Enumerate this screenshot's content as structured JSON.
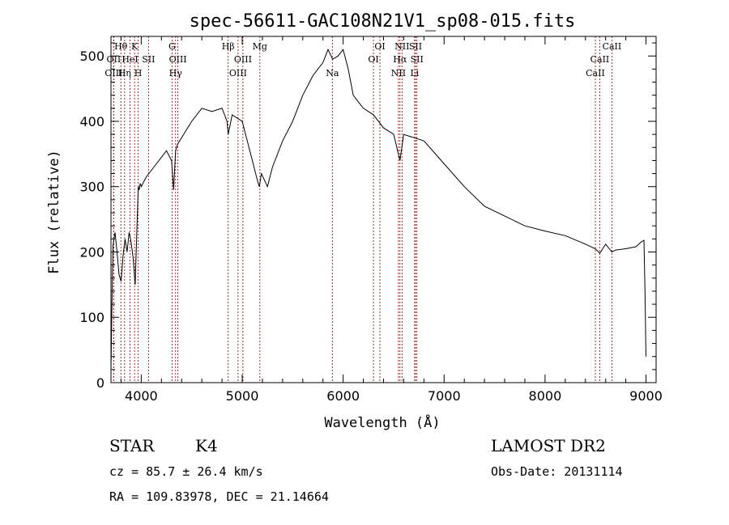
{
  "chart_data": {
    "type": "line",
    "title": "spec-56611-GAC108N21V1_sp08-015.fits",
    "xlabel": "Wavelength (Å)",
    "ylabel": "Flux (relative)",
    "xlim": [
      3700,
      9100
    ],
    "ylim": [
      0,
      530
    ],
    "xticks": [
      4000,
      5000,
      6000,
      7000,
      8000,
      9000
    ],
    "yticks": [
      0,
      100,
      200,
      300,
      400,
      500
    ],
    "grid": false,
    "series": [
      {
        "x": [
          3700,
          3710,
          3720,
          3740,
          3760,
          3780,
          3800,
          3820,
          3840,
          3860,
          3880,
          3900,
          3920,
          3940,
          3960,
          3970,
          3980,
          3990,
          4000,
          4050,
          4100,
          4150,
          4200,
          4250,
          4300,
          4320,
          4340,
          4360,
          4400,
          4500,
          4600,
          4700,
          4800,
          4850,
          4861,
          4900,
          5000,
          5050,
          5100,
          5150,
          5170,
          5190,
          5250,
          5300,
          5400,
          5500,
          5600,
          5700,
          5800,
          5850,
          5895,
          5950,
          6000,
          6050,
          6100,
          6150,
          6200,
          6300,
          6400,
          6500,
          6563,
          6600,
          6700,
          6800,
          7000,
          7200,
          7400,
          7600,
          7800,
          8000,
          8200,
          8400,
          8498,
          8542,
          8600,
          8662,
          8700,
          8800,
          8900,
          8950,
          8980,
          8990,
          9000
        ],
        "y": [
          20,
          120,
          210,
          230,
          200,
          165,
          155,
          195,
          220,
          200,
          230,
          215,
          190,
          150,
          250,
          300,
          295,
          305,
          300,
          315,
          325,
          335,
          345,
          355,
          340,
          295,
          355,
          365,
          375,
          400,
          420,
          415,
          420,
          400,
          380,
          410,
          400,
          370,
          340,
          310,
          300,
          320,
          300,
          330,
          370,
          400,
          440,
          470,
          490,
          510,
          495,
          500,
          510,
          480,
          440,
          430,
          420,
          410,
          390,
          380,
          340,
          380,
          375,
          370,
          335,
          300,
          270,
          255,
          240,
          232,
          225,
          212,
          205,
          198,
          212,
          200,
          203,
          205,
          208,
          215,
          218,
          140,
          40
        ]
      }
    ],
    "spectral_lines": [
      {
        "name": "Hθ",
        "wave": 3798,
        "row": 0
      },
      {
        "name": "OII",
        "wave": 3727,
        "row": 1
      },
      {
        "name": "OIII",
        "wave": 3727,
        "row": 2
      },
      {
        "name": "K",
        "wave": 3934,
        "row": 0
      },
      {
        "name": "HeI",
        "wave": 3889,
        "row": 1
      },
      {
        "name": "Hη",
        "wave": 3835,
        "row": 2
      },
      {
        "name": "SII",
        "wave": 4072,
        "row": 1
      },
      {
        "name": "H",
        "wave": 3969,
        "row": 2
      },
      {
        "name": "G",
        "wave": 4305,
        "row": 0
      },
      {
        "name": "OIII",
        "wave": 4363,
        "row": 1
      },
      {
        "name": "Hγ",
        "wave": 4340,
        "row": 2
      },
      {
        "name": "Hβ",
        "wave": 4861,
        "row": 0
      },
      {
        "name": "OIII",
        "wave": 5007,
        "row": 1
      },
      {
        "name": "OIII",
        "wave": 4959,
        "row": 2
      },
      {
        "name": "Mg",
        "wave": 5175,
        "row": 0
      },
      {
        "name": "Na",
        "wave": 5893,
        "row": 2
      },
      {
        "name": "OI",
        "wave": 6364,
        "row": 0
      },
      {
        "name": "OI",
        "wave": 6300,
        "row": 1
      },
      {
        "name": "NII",
        "wave": 6583,
        "row": 0
      },
      {
        "name": "SII",
        "wave": 6717,
        "row": 0
      },
      {
        "name": "Hα",
        "wave": 6563,
        "row": 1
      },
      {
        "name": "SII",
        "wave": 6731,
        "row": 1
      },
      {
        "name": "NII",
        "wave": 6548,
        "row": 2
      },
      {
        "name": "Li",
        "wave": 6708,
        "row": 2
      },
      {
        "name": "CaII",
        "wave": 8662,
        "row": 0
      },
      {
        "name": "CaII",
        "wave": 8542,
        "row": 1
      },
      {
        "name": "CaII",
        "wave": 8498,
        "row": 2
      }
    ]
  },
  "info": {
    "class": "STAR",
    "subclass": "K4",
    "survey": "LAMOST DR2",
    "cz": "cz = 85.7 ± 26.4 km/s",
    "obsdate": "Obs-Date: 20131114",
    "radec": "RA = 109.83978, DEC =  21.14664"
  },
  "colors": {
    "spectrum": "#000000",
    "line_marker": "#8b0000"
  }
}
